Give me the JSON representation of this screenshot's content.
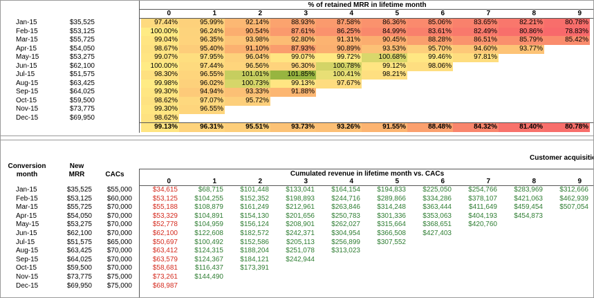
{
  "retention": {
    "title": "% of retained MRR in lifetime month",
    "columns": [
      "0",
      "1",
      "2",
      "3",
      "4",
      "5",
      "6",
      "7",
      "8",
      "9"
    ],
    "rows": [
      {
        "month": "Jan-15",
        "mrr": "$35,525",
        "cells": [
          "97.44%",
          "95.99%",
          "92.14%",
          "88.93%",
          "87.58%",
          "86.36%",
          "85.06%",
          "83.65%",
          "82.21%",
          "80.78%"
        ]
      },
      {
        "month": "Feb-15",
        "mrr": "$53,125",
        "cells": [
          "100.00%",
          "96.24%",
          "90.54%",
          "87.61%",
          "86.25%",
          "84.99%",
          "83.61%",
          "82.49%",
          "80.86%",
          "78.83%"
        ]
      },
      {
        "month": "Mar-15",
        "mrr": "$55,725",
        "cells": [
          "99.04%",
          "96.35%",
          "93.98%",
          "92.80%",
          "91.31%",
          "90.45%",
          "88.28%",
          "86.51%",
          "85.79%",
          "85.42%"
        ]
      },
      {
        "month": "Apr-15",
        "mrr": "$54,050",
        "cells": [
          "98.67%",
          "95.40%",
          "91.10%",
          "87.93%",
          "90.89%",
          "93.53%",
          "95.70%",
          "94.60%",
          "93.77%"
        ]
      },
      {
        "month": "May-15",
        "mrr": "$53,275",
        "cells": [
          "99.07%",
          "97.95%",
          "96.04%",
          "99.07%",
          "99.72%",
          "100.68%",
          "99.46%",
          "97.81%"
        ]
      },
      {
        "month": "Jun-15",
        "mrr": "$62,100",
        "cells": [
          "100.00%",
          "97.44%",
          "96.56%",
          "96.30%",
          "100.78%",
          "99.12%",
          "98.06%"
        ]
      },
      {
        "month": "Jul-15",
        "mrr": "$51,575",
        "cells": [
          "98.30%",
          "96.55%",
          "101.01%",
          "101.85%",
          "100.41%",
          "98.21%"
        ]
      },
      {
        "month": "Aug-15",
        "mrr": "$63,425",
        "cells": [
          "99.98%",
          "96.02%",
          "100.73%",
          "99.13%",
          "97.67%"
        ]
      },
      {
        "month": "Sep-15",
        "mrr": "$64,025",
        "cells": [
          "99.30%",
          "94.94%",
          "93.33%",
          "91.88%"
        ]
      },
      {
        "month": "Oct-15",
        "mrr": "$59,500",
        "cells": [
          "98.62%",
          "97.07%",
          "95.72%"
        ]
      },
      {
        "month": "Nov-15",
        "mrr": "$73,775",
        "cells": [
          "99.30%",
          "96.55%"
        ]
      },
      {
        "month": "Dec-15",
        "mrr": "$69,950",
        "cells": [
          "98.62%"
        ]
      }
    ],
    "average": [
      "99.13%",
      "96.31%",
      "95.51%",
      "93.73%",
      "93.26%",
      "91.55%",
      "88.48%",
      "84.32%",
      "81.40%",
      "80.78%"
    ]
  },
  "cac": {
    "section_title": "Customer acquisition",
    "headers": {
      "month": "Conversion month",
      "mrr": "New MRR",
      "cac": "CACs"
    },
    "title": "Cumulated revenue in lifetime month vs. CACs",
    "columns": [
      "0",
      "1",
      "2",
      "3",
      "4",
      "5",
      "6",
      "7",
      "8",
      "9"
    ],
    "rows": [
      {
        "month": "Jan-15",
        "mrr": "$35,525",
        "cac": "$55,000",
        "cells": [
          "$34,615",
          "$68,715",
          "$101,448",
          "$133,041",
          "$164,154",
          "$194,833",
          "$225,050",
          "$254,766",
          "$283,969",
          "$312,666"
        ]
      },
      {
        "month": "Feb-15",
        "mrr": "$53,125",
        "cac": "$60,000",
        "cells": [
          "$53,125",
          "$104,255",
          "$152,352",
          "$198,893",
          "$244,716",
          "$289,866",
          "$334,286",
          "$378,107",
          "$421,063",
          "$462,939"
        ]
      },
      {
        "month": "Mar-15",
        "mrr": "$55,725",
        "cac": "$70,000",
        "cells": [
          "$55,188",
          "$108,879",
          "$161,249",
          "$212,961",
          "$263,846",
          "$314,248",
          "$363,444",
          "$411,649",
          "$459,454",
          "$507,054"
        ]
      },
      {
        "month": "Apr-15",
        "mrr": "$54,050",
        "cac": "$70,000",
        "cells": [
          "$53,329",
          "$104,891",
          "$154,130",
          "$201,656",
          "$250,783",
          "$301,336",
          "$353,063",
          "$404,193",
          "$454,873"
        ]
      },
      {
        "month": "May-15",
        "mrr": "$53,275",
        "cac": "$70,000",
        "cells": [
          "$52,778",
          "$104,959",
          "$156,124",
          "$208,901",
          "$262,027",
          "$315,664",
          "$368,651",
          "$420,760"
        ]
      },
      {
        "month": "Jun-15",
        "mrr": "$62,100",
        "cac": "$70,000",
        "cells": [
          "$62,100",
          "$122,608",
          "$182,572",
          "$242,371",
          "$304,954",
          "$366,508",
          "$427,403"
        ]
      },
      {
        "month": "Jul-15",
        "mrr": "$51,575",
        "cac": "$65,000",
        "cells": [
          "$50,697",
          "$100,492",
          "$152,586",
          "$205,113",
          "$256,899",
          "$307,552"
        ]
      },
      {
        "month": "Aug-15",
        "mrr": "$63,425",
        "cac": "$70,000",
        "cells": [
          "$63,412",
          "$124,315",
          "$188,204",
          "$251,078",
          "$313,023"
        ]
      },
      {
        "month": "Sep-15",
        "mrr": "$64,025",
        "cac": "$70,000",
        "cells": [
          "$63,579",
          "$124,367",
          "$184,121",
          "$242,944"
        ]
      },
      {
        "month": "Oct-15",
        "mrr": "$59,500",
        "cac": "$70,000",
        "cells": [
          "$58,681",
          "$116,437",
          "$173,391"
        ]
      },
      {
        "month": "Nov-15",
        "mrr": "$73,775",
        "cac": "$75,000",
        "cells": [
          "$73,261",
          "$144,490"
        ]
      },
      {
        "month": "Dec-15",
        "mrr": "$69,950",
        "cac": "$75,000",
        "cells": [
          "$68,987"
        ]
      }
    ]
  }
}
